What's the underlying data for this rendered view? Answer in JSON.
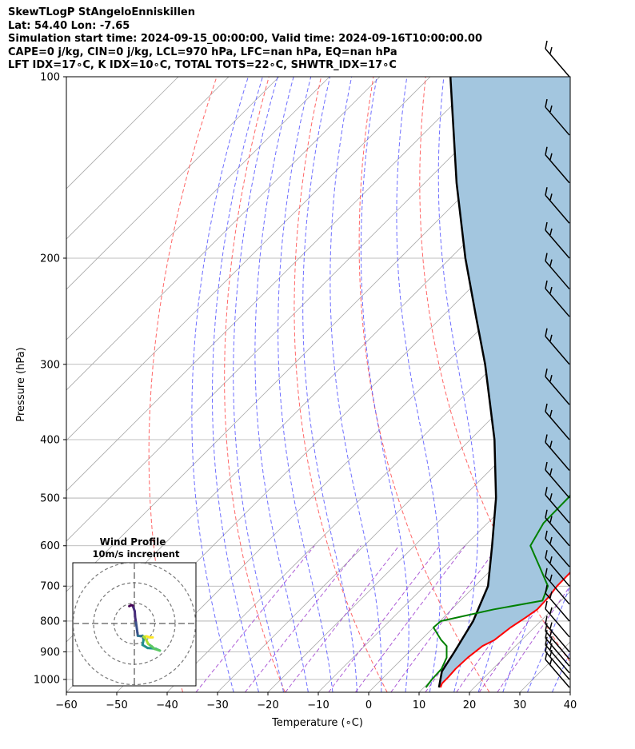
{
  "header": {
    "line1": "SkewTLogP StAngeloEnniskillen",
    "line2": "Lat: 54.40   Lon: -7.65",
    "line3": "Simulation start time: 2024-09-15_00:00:00, Valid time: 2024-09-16T10:00:00.00",
    "line4": "CAPE=0 j/kg, CIN=0 j/kg, LCL=970 hPa, LFC=nan hPa, EQ=nan hPa",
    "line5": "LFT IDX=17∘C, K IDX=10∘C, TOTAL TOTS=22∘C, SHWTR_IDX=17∘C"
  },
  "chart_data": [
    {
      "type": "line",
      "title": "",
      "chart_kind": "skew-T log-P",
      "xlabel": "Temperature (∘C)",
      "ylabel": "Pressure (hPa)",
      "xlim": [
        -60,
        40
      ],
      "ylim": [
        1050,
        100
      ],
      "y_scale": "log",
      "xticks": [
        "−60",
        "−50",
        "−40",
        "−30",
        "−20",
        "−10",
        "0",
        "10",
        "20",
        "30",
        "40"
      ],
      "yticks": [
        "100",
        "200",
        "300",
        "400",
        "500",
        "600",
        "700",
        "800",
        "900",
        "1000"
      ],
      "grid": true,
      "colors": {
        "temperature": "#ff0000",
        "dewpoint": "#008000",
        "parcel": "#000000",
        "shading": "#a3c6df",
        "dry_adiabats": "#ff5555",
        "moist_adiabats": "#5555ff",
        "mixing_ratio": "#9932cc",
        "isotherms": "#aaaaaa"
      },
      "series": [
        {
          "key": "temperature",
          "points": [
            [
              1031,
              13.3
            ],
            [
              1015,
              12.8
            ],
            [
              990,
              12.8
            ],
            [
              960,
              12.6
            ],
            [
              920,
              12.8
            ],
            [
              880,
              13.4
            ],
            [
              860,
              14.6
            ],
            [
              820,
              15.3
            ],
            [
              790,
              16.3
            ],
            [
              765,
              17.0
            ],
            [
              730,
              16.8
            ],
            [
              700,
              16.3
            ],
            [
              650,
              16.2
            ],
            [
              600,
              15.6
            ],
            [
              550,
              15.1
            ],
            [
              500,
              14.6
            ],
            [
              450,
              14.1
            ],
            [
              400,
              13.1
            ],
            [
              350,
              11.0
            ],
            [
              320,
              10.0
            ],
            [
              290,
              10.0
            ],
            [
              270,
              10.0
            ],
            [
              250,
              10.5
            ],
            [
              230,
              11.4
            ],
            [
              210,
              12.0
            ],
            [
              195,
              12.3
            ],
            [
              185,
              13.5
            ],
            [
              175,
              14.0
            ],
            [
              165,
              14.0
            ],
            [
              150,
              13.0
            ],
            [
              140,
              13.3
            ],
            [
              128,
              15.0
            ],
            [
              120,
              16.5
            ],
            [
              112,
              16.8
            ],
            [
              105,
              17.2
            ],
            [
              100,
              17.2
            ]
          ]
        },
        {
          "key": "dewpoint",
          "points": [
            [
              1031,
              10.4
            ],
            [
              1000,
              10.0
            ],
            [
              960,
              9.8
            ],
            [
              920,
              8.6
            ],
            [
              880,
              6.3
            ],
            [
              860,
              4.0
            ],
            [
              820,
              0.0
            ],
            [
              800,
              0.2
            ],
            [
              765,
              8.4
            ],
            [
              740,
              16.3
            ],
            [
              700,
              14.5
            ],
            [
              650,
              9.0
            ],
            [
              600,
              3.0
            ],
            [
              550,
              1.1
            ],
            [
              500,
              1.0
            ],
            [
              450,
              0.0
            ],
            [
              400,
              -3.0
            ],
            [
              350,
              -5.0
            ],
            [
              330,
              -4.5
            ],
            [
              305,
              -1.2
            ],
            [
              290,
              -1.0
            ],
            [
              250,
              -1.5
            ],
            [
              230,
              -1.5
            ],
            [
              210,
              -2.0
            ],
            [
              195,
              -2.4
            ],
            [
              180,
              -2.0
            ],
            [
              170,
              -1.0
            ],
            [
              160,
              0.0
            ],
            [
              150,
              0.6
            ],
            [
              140,
              0.5
            ],
            [
              130,
              1.0
            ],
            [
              122,
              1.5
            ],
            [
              114,
              0.2
            ],
            [
              106,
              2.1
            ],
            [
              100,
              4.5
            ]
          ]
        },
        {
          "key": "parcel",
          "points": [
            [
              1031,
              13.0
            ],
            [
              1000,
              11.7
            ],
            [
              970,
              10.4
            ],
            [
              900,
              9.0
            ],
            [
              800,
              6.6
            ],
            [
              700,
              2.6
            ],
            [
              600,
              -4.6
            ],
            [
              500,
              -13.3
            ],
            [
              400,
              -25.2
            ],
            [
              300,
              -42.0
            ],
            [
              250,
              -53.3
            ],
            [
              200,
              -67.0
            ],
            [
              150,
              -83.7
            ],
            [
              100,
              -106.0
            ]
          ]
        }
      ],
      "shaded_region": "between parcel and temperature",
      "wind_barbs": "right margin",
      "barb_pressures": [
        1031,
        1000,
        975,
        950,
        925,
        900,
        850,
        800,
        750,
        700,
        650,
        600,
        550,
        500,
        450,
        400,
        350,
        300,
        250,
        225,
        200,
        175,
        150,
        125,
        100
      ]
    },
    {
      "type": "line",
      "chart_kind": "hodograph",
      "title": "Wind Profile",
      "subtitle": "10m/s increment",
      "rings": [
        1,
        2,
        3
      ],
      "trace": [
        [
          -2.5,
          8.5
        ],
        [
          -1.5,
          9.0
        ],
        [
          -0.8,
          8.8
        ],
        [
          -0.5,
          8.0
        ],
        [
          0.2,
          6.0
        ],
        [
          0.4,
          3.0
        ],
        [
          0.8,
          0.5
        ],
        [
          1.5,
          -4.5
        ],
        [
          1.7,
          -6.0
        ],
        [
          3.0,
          -6.2
        ],
        [
          4.0,
          -6.0
        ],
        [
          4.5,
          -8.0
        ],
        [
          4.0,
          -10.5
        ],
        [
          6.5,
          -12.0
        ],
        [
          9.0,
          -12.2
        ],
        [
          10.5,
          -12.4
        ],
        [
          12.5,
          -13.3
        ],
        [
          10.0,
          -12.5
        ],
        [
          8.5,
          -11.2
        ],
        [
          6.8,
          -10.0
        ],
        [
          5.5,
          -7.5
        ],
        [
          4.5,
          -6.5
        ],
        [
          6.0,
          -6.3
        ],
        [
          7.5,
          -6.8
        ],
        [
          9.0,
          -6.8
        ]
      ]
    }
  ]
}
